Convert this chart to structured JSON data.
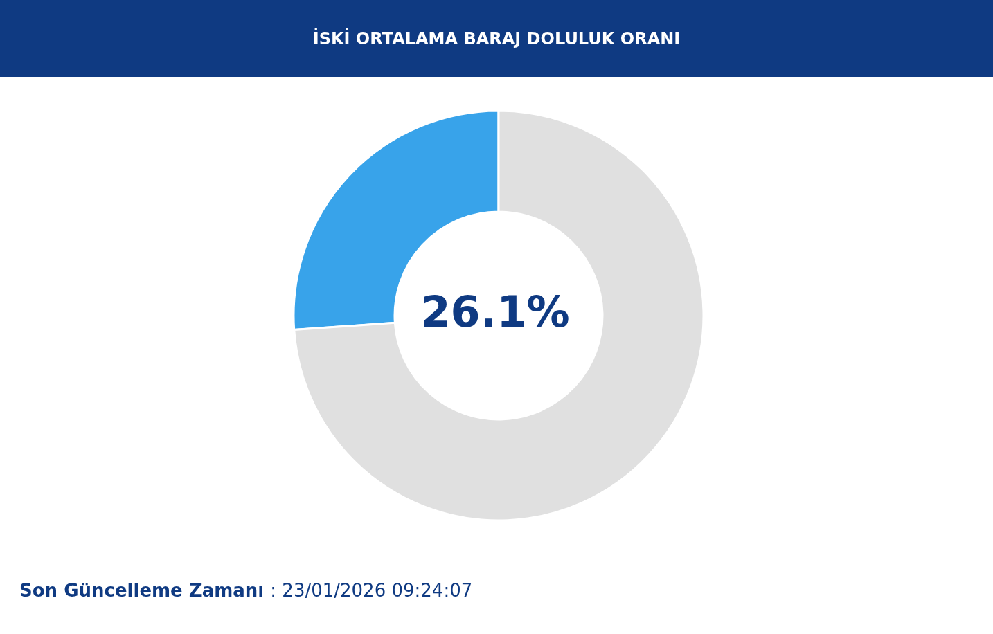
{
  "chart_data": {
    "type": "donut",
    "title": "İSKİ ORTALAMA BARAJ DOLULUK ORANI",
    "categories": [
      null,
      null
    ],
    "values": [
      26.1,
      73.9
    ],
    "colors": [
      "#38a3ea",
      "#e0e0e0"
    ],
    "value_labels": [
      "26.1%",
      null
    ],
    "annotations": [
      "Son Güncelleme Zamanı : 23/01/2026 09:24:07"
    ]
  }
}
